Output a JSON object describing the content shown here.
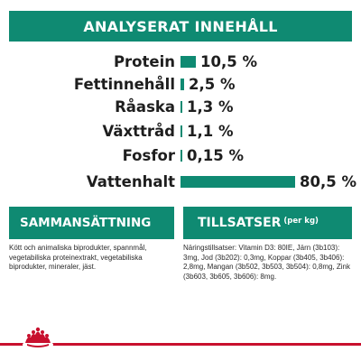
{
  "title": "ANALYSERAT INNEHÅLL",
  "analysis": [
    {
      "label": "Protein",
      "value": "10,5 %",
      "fraction": 0.105
    },
    {
      "label": "Fettinnehåll",
      "value": "2,5 %",
      "fraction": 0.025
    },
    {
      "label": "Råaska",
      "value": "1,3 %",
      "fraction": 0.013
    },
    {
      "label": "Växttråd",
      "value": "1,1 %",
      "fraction": 0.011
    },
    {
      "label": "Fosfor",
      "value": "0,15 %",
      "fraction": 0.0015
    },
    {
      "label": "Vattenhalt",
      "value": "80,5 %",
      "fraction": 0.805
    }
  ],
  "composition": {
    "heading": "SAMMANSÄTTNING",
    "text": "Kött och animaliska biprodukter, spannmål, vegetabiliska proteinextrakt, vegetabiliska biprodukter, mineraler, jäst."
  },
  "additives": {
    "heading": "TILLSATSER",
    "heading_unit": "(per kg)",
    "text": "Näringstillsatser: Vitamin D3: 80IE, Järn (3b103): 3mg, Jod (3b202): 0,3mg, Koppar (3b405, 3b406): 2,8mg, Mangan (3b502, 3b503, 3b504): 0,8mg, Zink (3b603, 3b605, 3b606): 8mg."
  },
  "colors": {
    "accent": "#0f8a72",
    "brand_red": "#c8102e"
  },
  "icons": {
    "logo": "royal-canin-crown-icon"
  }
}
